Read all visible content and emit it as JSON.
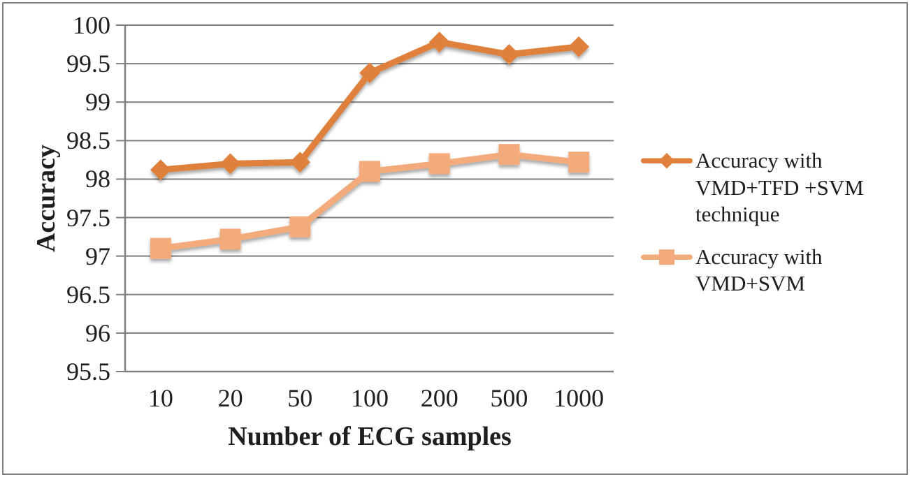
{
  "chart_data": {
    "type": "line",
    "title": "",
    "xlabel": "Number of ECG samples",
    "ylabel": "Accuracy",
    "categories": [
      "10",
      "20",
      "50",
      "100",
      "200",
      "500",
      "1000"
    ],
    "series": [
      {
        "name": "Accuracy with VMD+TFD +SVM technique",
        "legend_label": "Accuracy with\nVMD+TFD +SVM\ntechnique",
        "marker": "diamond",
        "color": "#DF813C",
        "values": [
          98.12,
          98.2,
          98.22,
          99.38,
          99.78,
          99.62,
          99.72
        ]
      },
      {
        "name": "Accuracy with VMD+SVM",
        "legend_label": "Accuracy with\nVMD+SVM",
        "marker": "square",
        "color": "#F3AB7C",
        "values": [
          97.1,
          97.22,
          97.38,
          98.1,
          98.2,
          98.32,
          98.22
        ]
      }
    ],
    "ylim": [
      95.5,
      100
    ],
    "ytick_step": 0.5,
    "yticks": [
      "100",
      "99.5",
      "99",
      "98.5",
      "98",
      "97.5",
      "97",
      "96.5",
      "96",
      "95.5"
    ],
    "grid": true,
    "legend_position": "right",
    "colors": {
      "gridline": "#7f7f7f",
      "axis": "#7f7f7f",
      "text": "#1e1e1e",
      "background": "#ffffff",
      "figure_border": "#7e7e7e"
    }
  }
}
